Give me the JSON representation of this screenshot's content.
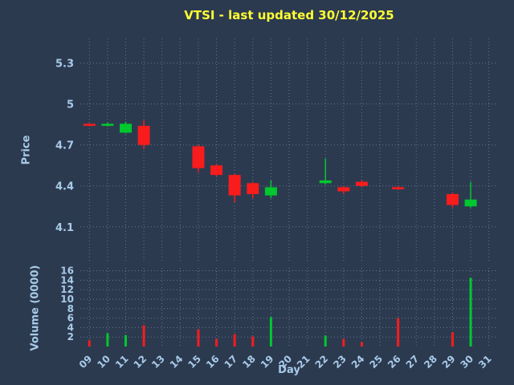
{
  "chart_data": {
    "type": "candlestick",
    "title": "VTSI - last updated 30/12/2025",
    "xlabel": "Day",
    "ylabel_price": "Price",
    "ylabel_volume": "Volume (0000)",
    "legend": "none",
    "grid": true,
    "xlim": [
      8.5,
      31.5
    ],
    "price_ylim": [
      3.84,
      5.48
    ],
    "volume_ylim": [
      0,
      16.6
    ],
    "price_ticks": [
      {
        "value": 4.1,
        "label": "4.1"
      },
      {
        "value": 4.4,
        "label": "4.4"
      },
      {
        "value": 4.7,
        "label": "4.7"
      },
      {
        "value": 5.0,
        "label": "5"
      },
      {
        "value": 5.3,
        "label": "5.3"
      }
    ],
    "volume_ticks": [
      2,
      4,
      6,
      8,
      10,
      12,
      14,
      16
    ],
    "x_ticks": [
      {
        "day": 9,
        "label": "09"
      },
      {
        "day": 10,
        "label": "10"
      },
      {
        "day": 11,
        "label": "11"
      },
      {
        "day": 12,
        "label": "12"
      },
      {
        "day": 13,
        "label": "13"
      },
      {
        "day": 14,
        "label": "14"
      },
      {
        "day": 15,
        "label": "15"
      },
      {
        "day": 16,
        "label": "16"
      },
      {
        "day": 17,
        "label": "17"
      },
      {
        "day": 18,
        "label": "18"
      },
      {
        "day": 19,
        "label": "19"
      },
      {
        "day": 20,
        "label": "20"
      },
      {
        "day": 21,
        "label": "21"
      },
      {
        "day": 22,
        "label": "22"
      },
      {
        "day": 23,
        "label": "23"
      },
      {
        "day": 24,
        "label": "24"
      },
      {
        "day": 25,
        "label": "25"
      },
      {
        "day": 26,
        "label": "26"
      },
      {
        "day": 27,
        "label": "27"
      },
      {
        "day": 28,
        "label": "28"
      },
      {
        "day": 29,
        "label": "29"
      },
      {
        "day": 30,
        "label": "30"
      },
      {
        "day": 31,
        "label": "31"
      }
    ],
    "candles": [
      {
        "day": 9,
        "open": 4.855,
        "high": 4.86,
        "low": 4.835,
        "close": 4.84,
        "volume": 1.3
      },
      {
        "day": 10,
        "open": 4.84,
        "high": 4.865,
        "low": 4.835,
        "close": 4.855,
        "volume": 2.8
      },
      {
        "day": 11,
        "open": 4.79,
        "high": 4.87,
        "low": 4.785,
        "close": 4.855,
        "volume": 2.4
      },
      {
        "day": 12,
        "open": 4.84,
        "high": 4.88,
        "low": 4.67,
        "close": 4.7,
        "volume": 4.5
      },
      {
        "day": 15,
        "open": 4.69,
        "high": 4.7,
        "low": 4.5,
        "close": 4.53,
        "volume": 3.6
      },
      {
        "day": 16,
        "open": 4.55,
        "high": 4.56,
        "low": 4.47,
        "close": 4.48,
        "volume": 1.6
      },
      {
        "day": 17,
        "open": 4.48,
        "high": 4.49,
        "low": 4.28,
        "close": 4.33,
        "volume": 2.6
      },
      {
        "day": 18,
        "open": 4.42,
        "high": 4.43,
        "low": 4.31,
        "close": 4.34,
        "volume": 2.1
      },
      {
        "day": 19,
        "open": 4.33,
        "high": 4.44,
        "low": 4.31,
        "close": 4.39,
        "volume": 6.2
      },
      {
        "day": 22,
        "open": 4.42,
        "high": 4.6,
        "low": 4.41,
        "close": 4.44,
        "volume": 2.3
      },
      {
        "day": 23,
        "open": 4.39,
        "high": 4.4,
        "low": 4.34,
        "close": 4.36,
        "volume": 1.6
      },
      {
        "day": 24,
        "open": 4.43,
        "high": 4.44,
        "low": 4.39,
        "close": 4.4,
        "volume": 0.9
      },
      {
        "day": 26,
        "open": 4.39,
        "high": 4.4,
        "low": 4.37,
        "close": 4.375,
        "volume": 6.0
      },
      {
        "day": 29,
        "open": 4.34,
        "high": 4.35,
        "low": 4.24,
        "close": 4.26,
        "volume": 3.0
      },
      {
        "day": 30,
        "open": 4.25,
        "high": 4.43,
        "low": 4.24,
        "close": 4.3,
        "volume": 14.5
      }
    ],
    "colors": {
      "background": "#2c3a50",
      "up": "#00c82e",
      "down": "#f81c1c",
      "title": "#ffff33",
      "tick": "#a8cbe8",
      "grid": "#93a6bd"
    }
  }
}
